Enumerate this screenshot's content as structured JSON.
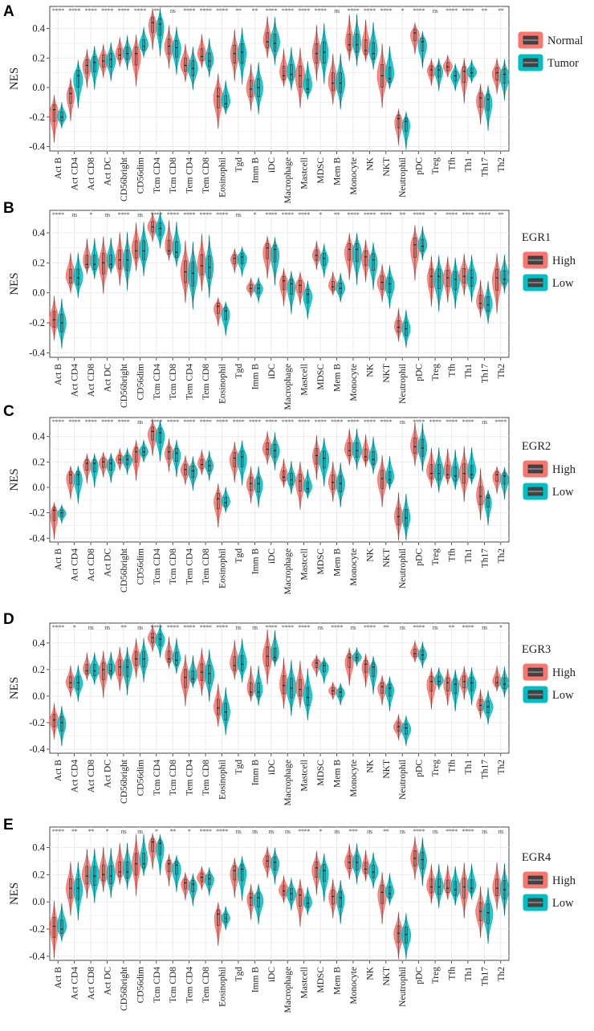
{
  "chart_data": [
    {
      "panel": "A",
      "type": "violin",
      "ylabel": "NES",
      "yticks": [
        0.4,
        0.2,
        0.0,
        -0.2,
        -0.4
      ],
      "ylim": [
        -0.43,
        0.55
      ],
      "legend_title": "",
      "series": [
        {
          "name": "Normal",
          "color": "#F8766D"
        },
        {
          "name": "Tumor",
          "color": "#00BFC4"
        }
      ],
      "categories": [
        "Act B",
        "Act CD4",
        "Act CD8",
        "Act DC",
        "CD56bright",
        "CD56dim",
        "Tcm CD4",
        "Tcm CD8",
        "Tem CD4",
        "Tem CD8",
        "Eosinophil",
        "Tgd",
        "Imm B",
        "iDC",
        "Macrophage",
        "Mastcell",
        "MDSC",
        "Mem B",
        "Monocyte",
        "NK",
        "NKT",
        "Neutrophil",
        "pDC",
        "Treg",
        "Tfh",
        "Th1",
        "Th17",
        "Th2"
      ],
      "significance": [
        "****",
        "****",
        "****",
        "****",
        "****",
        "****",
        "**",
        "ns",
        "****",
        "****",
        "****",
        "**",
        "**",
        "****",
        "****",
        "****",
        "****",
        "ns",
        "****",
        "****",
        "****",
        "*",
        "****",
        "ns",
        "****",
        "****",
        "**",
        "**"
      ],
      "medians": {
        "Normal": [
          -0.15,
          -0.04,
          0.15,
          0.18,
          0.22,
          0.23,
          0.44,
          0.28,
          0.15,
          0.21,
          -0.06,
          0.23,
          -0.01,
          0.31,
          0.08,
          0.08,
          0.23,
          0.03,
          0.29,
          0.25,
          0.08,
          -0.21,
          0.37,
          0.12,
          0.14,
          0.11,
          -0.07,
          0.1
        ],
        "Tumor": [
          -0.2,
          0.08,
          0.17,
          0.19,
          0.23,
          0.28,
          0.43,
          0.27,
          0.13,
          0.18,
          -0.11,
          0.24,
          0.0,
          0.3,
          0.09,
          -0.01,
          0.24,
          0.03,
          0.29,
          0.23,
          0.06,
          -0.23,
          0.31,
          0.12,
          0.08,
          0.1,
          -0.08,
          0.09
        ]
      }
    },
    {
      "panel": "B",
      "type": "violin",
      "ylabel": "NES",
      "yticks": [
        0.4,
        0.2,
        0.0,
        -0.2,
        -0.4
      ],
      "ylim": [
        -0.43,
        0.55
      ],
      "legend_title": "EGR1",
      "series": [
        {
          "name": "High",
          "color": "#F8766D"
        },
        {
          "name": "Low",
          "color": "#00BFC4"
        }
      ],
      "categories": [
        "Act B",
        "Act CD4",
        "Act CD8",
        "Act DC",
        "CD56bright",
        "CD56dim",
        "Tcm CD4",
        "Tcm CD8",
        "Tem CD4",
        "Tem CD8",
        "Eosinophil",
        "Tgd",
        "Imm B",
        "iDC",
        "Macrophage",
        "Mastcell",
        "MDSC",
        "Mem B",
        "Monocyte",
        "NK",
        "NKT",
        "Neutrophil",
        "pDC",
        "Treg",
        "Tfh",
        "Th1",
        "Th17",
        "Th2"
      ],
      "significance": [
        "****",
        "ns",
        "*",
        "ns",
        "****",
        "ns",
        "****",
        "****",
        "****",
        "****",
        "****",
        "ns",
        "*",
        "****",
        "****",
        "****",
        "*",
        "**",
        "****",
        "****",
        "****",
        "**",
        "****",
        "*",
        "****",
        "****",
        "****",
        "**"
      ],
      "medians": {
        "High": [
          -0.18,
          0.1,
          0.19,
          0.2,
          0.22,
          0.28,
          0.44,
          0.28,
          0.14,
          0.18,
          -0.09,
          0.23,
          0.03,
          0.3,
          0.08,
          0.05,
          0.25,
          0.04,
          0.29,
          0.24,
          0.07,
          -0.23,
          0.32,
          0.11,
          0.1,
          0.11,
          -0.07,
          0.1
        ],
        "Low": [
          -0.2,
          0.1,
          0.19,
          0.19,
          0.22,
          0.28,
          0.43,
          0.27,
          0.13,
          0.17,
          -0.12,
          0.24,
          0.03,
          0.29,
          0.06,
          -0.01,
          0.23,
          0.03,
          0.29,
          0.22,
          0.06,
          -0.24,
          0.31,
          0.11,
          0.09,
          0.1,
          -0.08,
          0.09
        ]
      }
    },
    {
      "panel": "C",
      "type": "violin",
      "ylabel": "NES",
      "yticks": [
        0.4,
        0.2,
        0.0,
        -0.2,
        -0.4
      ],
      "ylim": [
        -0.43,
        0.55
      ],
      "legend_title": "EGR2",
      "series": [
        {
          "name": "High",
          "color": "#F8766D"
        },
        {
          "name": "Low",
          "color": "#00BFC4"
        }
      ],
      "categories": [
        "Act B",
        "Act CD4",
        "Act CD8",
        "Act DC",
        "CD56bright",
        "CD56dim",
        "Tcm CD4",
        "Tcm CD8",
        "Tem CD4",
        "Tem CD8",
        "Eosinophil",
        "Tgd",
        "Imm B",
        "iDC",
        "Macrophage",
        "Mastcell",
        "MDSC",
        "Mem B",
        "Monocyte",
        "NK",
        "NKT",
        "Neutrophil",
        "pDC",
        "Treg",
        "Tfh",
        "Th1",
        "Th17",
        "Th2"
      ],
      "significance": [
        "****",
        "****",
        "****",
        "****",
        "****",
        "ns",
        "****",
        "****",
        "****",
        "****",
        "****",
        "****",
        "****",
        "****",
        "****",
        "****",
        "****",
        "****",
        "****",
        "****",
        "****",
        "ns",
        "****",
        "****",
        "****",
        "****",
        "ns",
        "****"
      ],
      "medians": {
        "High": [
          -0.18,
          0.1,
          0.19,
          0.2,
          0.22,
          0.28,
          0.44,
          0.28,
          0.14,
          0.18,
          -0.09,
          0.23,
          0.03,
          0.3,
          0.08,
          0.05,
          0.25,
          0.04,
          0.29,
          0.24,
          0.07,
          -0.23,
          0.32,
          0.11,
          0.1,
          0.11,
          -0.07,
          0.1
        ],
        "Low": [
          -0.2,
          0.1,
          0.19,
          0.19,
          0.22,
          0.28,
          0.43,
          0.27,
          0.13,
          0.17,
          -0.12,
          0.24,
          0.03,
          0.29,
          0.06,
          -0.01,
          0.23,
          0.03,
          0.29,
          0.22,
          0.06,
          -0.24,
          0.31,
          0.11,
          0.09,
          0.1,
          -0.08,
          0.09
        ]
      }
    },
    {
      "panel": "D",
      "type": "violin",
      "ylabel": "NES",
      "yticks": [
        0.4,
        0.2,
        0.0,
        -0.2,
        -0.4
      ],
      "ylim": [
        -0.43,
        0.55
      ],
      "legend_title": "EGR3",
      "series": [
        {
          "name": "High",
          "color": "#F8766D"
        },
        {
          "name": "Low",
          "color": "#00BFC4"
        }
      ],
      "categories": [
        "Act B",
        "Act CD4",
        "Act CD8",
        "Act DC",
        "CD56bright",
        "CD56dim",
        "Tcm CD4",
        "Tcm CD8",
        "Tem CD4",
        "Tem CD8",
        "Eosinophil",
        "Tgd",
        "Imm B",
        "iDC",
        "Macrophage",
        "Mastcell",
        "MDSC",
        "Mem B",
        "Monocyte",
        "NK",
        "NKT",
        "Neutrophil",
        "pDC",
        "Treg",
        "Tfh",
        "Th1",
        "Th17",
        "Th2"
      ],
      "significance": [
        "****",
        "*",
        "ns",
        "ns",
        "**",
        "ns",
        "****",
        "****",
        "****",
        "****",
        "****",
        "ns",
        "ns",
        "****",
        "****",
        "****",
        "ns",
        "****",
        "ns",
        "****",
        "**",
        "ns",
        "****",
        "ns",
        "**",
        "****",
        "ns",
        "*"
      ],
      "medians": {
        "High": [
          -0.18,
          0.1,
          0.19,
          0.2,
          0.22,
          0.28,
          0.44,
          0.28,
          0.14,
          0.18,
          -0.09,
          0.23,
          0.03,
          0.3,
          0.08,
          0.05,
          0.25,
          0.04,
          0.29,
          0.24,
          0.07,
          -0.23,
          0.32,
          0.11,
          0.1,
          0.11,
          -0.07,
          0.1
        ],
        "Low": [
          -0.2,
          0.1,
          0.19,
          0.19,
          0.22,
          0.28,
          0.43,
          0.27,
          0.13,
          0.17,
          -0.12,
          0.24,
          0.03,
          0.29,
          0.06,
          -0.01,
          0.23,
          0.03,
          0.29,
          0.22,
          0.06,
          -0.24,
          0.31,
          0.11,
          0.09,
          0.1,
          -0.08,
          0.09
        ]
      }
    },
    {
      "panel": "E",
      "type": "violin",
      "ylabel": "NES",
      "yticks": [
        0.4,
        0.2,
        0.0,
        -0.2,
        -0.4
      ],
      "ylim": [
        -0.43,
        0.55
      ],
      "legend_title": "EGR4",
      "series": [
        {
          "name": "High",
          "color": "#F8766D"
        },
        {
          "name": "Low",
          "color": "#00BFC4"
        }
      ],
      "categories": [
        "Act B",
        "Act CD4",
        "Act CD8",
        "Act DC",
        "CD56bright",
        "CD56dim",
        "Tcm CD4",
        "Tcm CD8",
        "Tem CD4",
        "Tem CD8",
        "Eosinophil",
        "Tgd",
        "Imm B",
        "iDC",
        "Macrophage",
        "Mastcell",
        "MDSC",
        "Mem B",
        "Monocyte",
        "NK",
        "NKT",
        "Neutrophil",
        "pDC",
        "Treg",
        "Tfh",
        "Th1",
        "Th17",
        "Th2"
      ],
      "significance": [
        "****",
        "**",
        "**",
        "*",
        "ns",
        "ns",
        "*",
        "**",
        "*",
        "****",
        "****",
        "ns",
        "ns",
        "ns",
        "ns",
        "****",
        "*",
        "ns",
        "***",
        "ns",
        "**",
        "ns",
        "****",
        "ns",
        "****",
        "****",
        "ns",
        "ns"
      ],
      "medians": {
        "High": [
          -0.18,
          0.1,
          0.19,
          0.2,
          0.22,
          0.28,
          0.44,
          0.28,
          0.14,
          0.18,
          -0.09,
          0.23,
          0.03,
          0.3,
          0.08,
          0.05,
          0.25,
          0.04,
          0.29,
          0.24,
          0.07,
          -0.23,
          0.32,
          0.11,
          0.1,
          0.11,
          -0.07,
          0.1
        ],
        "Low": [
          -0.2,
          0.1,
          0.19,
          0.19,
          0.22,
          0.28,
          0.43,
          0.27,
          0.13,
          0.17,
          -0.12,
          0.24,
          0.03,
          0.29,
          0.06,
          -0.01,
          0.23,
          0.03,
          0.29,
          0.22,
          0.06,
          -0.24,
          0.31,
          0.11,
          0.09,
          0.1,
          -0.08,
          0.09
        ]
      }
    }
  ]
}
